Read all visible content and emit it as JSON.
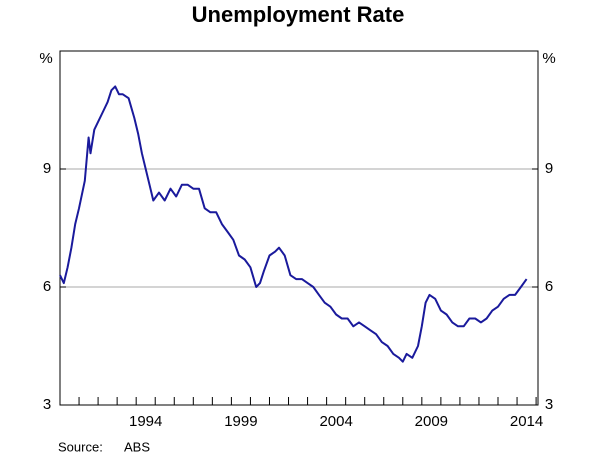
{
  "chart_data": {
    "type": "line",
    "title": "Unemployment Rate",
    "y_unit": "%",
    "source_label": "Source:",
    "source": "ABS",
    "xlim": [
      1990,
      2015.1
    ],
    "ylim": [
      3,
      12
    ],
    "yticks": [
      3,
      6,
      9
    ],
    "grid": true,
    "xticks": [
      {
        "value": 1994.5,
        "label": "1994"
      },
      {
        "value": 1999.5,
        "label": "1999"
      },
      {
        "value": 2004.5,
        "label": "2004"
      },
      {
        "value": 2009.5,
        "label": "2009"
      },
      {
        "value": 2014.5,
        "label": "2014"
      }
    ],
    "minor_xticks": [
      1991,
      1992,
      1993,
      1994,
      1995,
      1996,
      1997,
      1998,
      1999,
      2000,
      2001,
      2002,
      2003,
      2004,
      2005,
      2006,
      2007,
      2008,
      2009,
      2010,
      2011,
      2012,
      2013,
      2014,
      2015
    ],
    "series": [
      {
        "color": "#1a1a9c",
        "x": [
          1990.0,
          1990.2,
          1990.4,
          1990.6,
          1990.8,
          1991.0,
          1991.3,
          1991.5,
          1991.6,
          1991.8,
          1992.0,
          1992.3,
          1992.5,
          1992.7,
          1992.9,
          1993.1,
          1993.3,
          1993.6,
          1993.9,
          1994.1,
          1994.3,
          1994.5,
          1994.7,
          1994.9,
          1995.2,
          1995.5,
          1995.8,
          1996.1,
          1996.4,
          1996.7,
          1997.0,
          1997.3,
          1997.6,
          1997.9,
          1998.2,
          1998.5,
          1998.8,
          1999.1,
          1999.4,
          1999.7,
          2000.0,
          2000.3,
          2000.5,
          2000.7,
          2001.0,
          2001.3,
          2001.5,
          2001.8,
          2002.1,
          2002.4,
          2002.7,
          2003.0,
          2003.3,
          2003.6,
          2003.9,
          2004.2,
          2004.5,
          2004.8,
          2005.1,
          2005.4,
          2005.7,
          2006.0,
          2006.3,
          2006.6,
          2006.9,
          2007.2,
          2007.5,
          2007.8,
          2008.0,
          2008.2,
          2008.5,
          2008.8,
          2009.0,
          2009.2,
          2009.4,
          2009.7,
          2010.0,
          2010.3,
          2010.6,
          2010.9,
          2011.2,
          2011.5,
          2011.8,
          2012.1,
          2012.4,
          2012.7,
          2013.0,
          2013.3,
          2013.6,
          2013.9,
          2014.2,
          2014.5
        ],
        "values": [
          6.3,
          6.1,
          6.5,
          7.0,
          7.6,
          8.0,
          8.7,
          9.8,
          9.4,
          10.0,
          10.2,
          10.5,
          10.7,
          11.0,
          11.1,
          10.9,
          10.9,
          10.8,
          10.3,
          9.9,
          9.4,
          9.0,
          8.6,
          8.2,
          8.4,
          8.2,
          8.5,
          8.3,
          8.6,
          8.6,
          8.5,
          8.5,
          8.0,
          7.9,
          7.9,
          7.6,
          7.4,
          7.2,
          6.8,
          6.7,
          6.5,
          6.0,
          6.1,
          6.4,
          6.8,
          6.9,
          7.0,
          6.8,
          6.3,
          6.2,
          6.2,
          6.1,
          6.0,
          5.8,
          5.6,
          5.5,
          5.3,
          5.2,
          5.2,
          5.0,
          5.1,
          5.0,
          4.9,
          4.8,
          4.6,
          4.5,
          4.3,
          4.2,
          4.1,
          4.3,
          4.2,
          4.5,
          5.0,
          5.6,
          5.8,
          5.7,
          5.4,
          5.3,
          5.1,
          5.0,
          5.0,
          5.2,
          5.2,
          5.1,
          5.2,
          5.4,
          5.5,
          5.7,
          5.8,
          5.8,
          6.0,
          6.2
        ]
      }
    ]
  }
}
